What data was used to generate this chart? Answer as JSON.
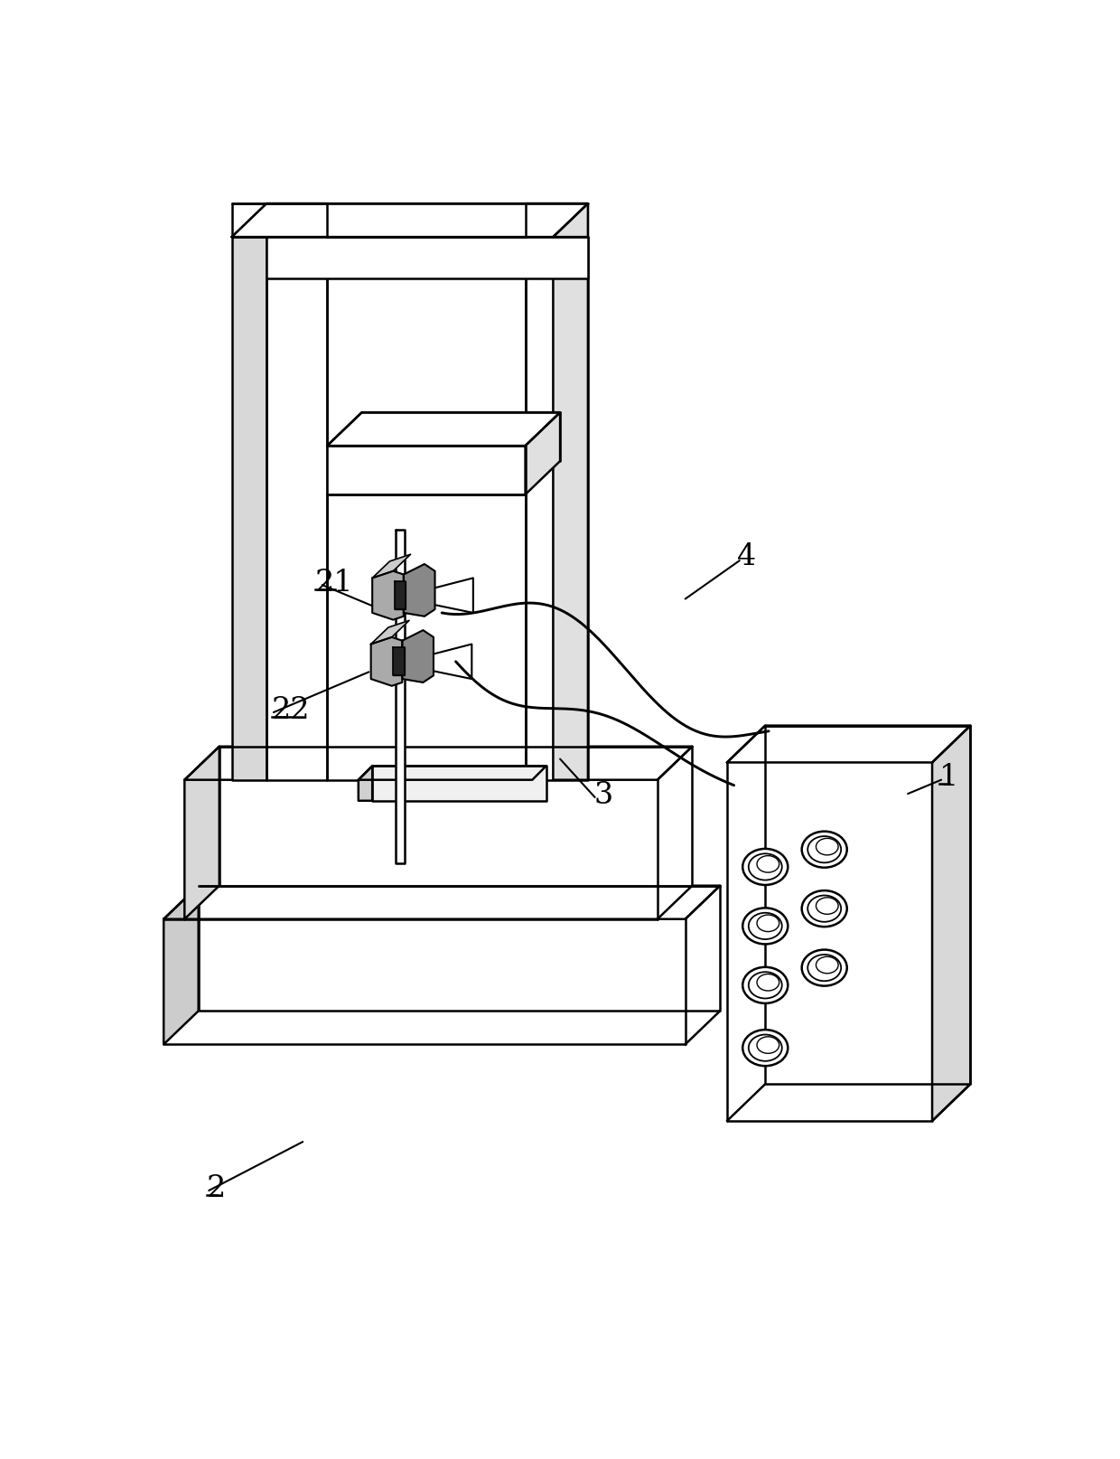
{
  "background_color": "#ffffff",
  "line_color": "#000000",
  "lw": 1.8,
  "fig_width": 12.4,
  "fig_height": 16.15,
  "dpi": 100
}
